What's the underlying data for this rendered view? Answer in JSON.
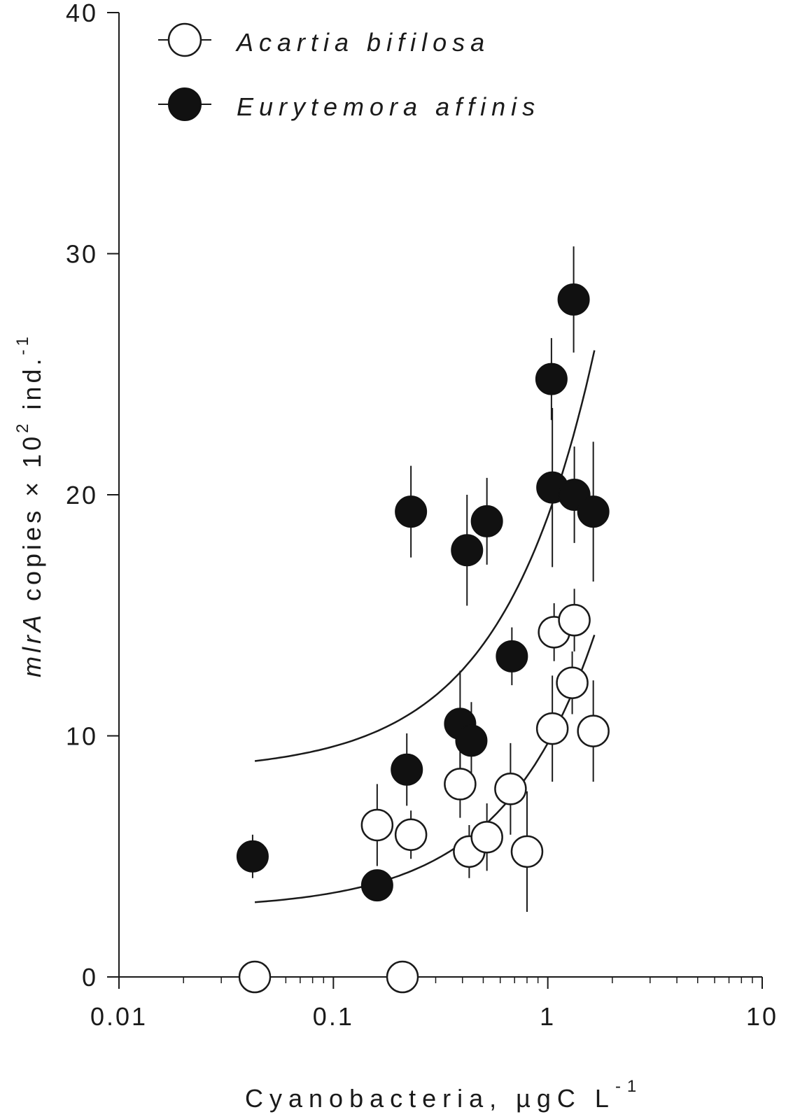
{
  "chart_data": {
    "type": "scatter",
    "x_scale": "log",
    "xlim": [
      0.01,
      10
    ],
    "ylim": [
      0,
      40
    ],
    "x_ticks": [
      0.01,
      0.1,
      1,
      10
    ],
    "x_tick_labels": [
      "0.01",
      "0.1",
      "1",
      "10"
    ],
    "y_ticks": [
      0,
      10,
      20,
      30,
      40
    ],
    "y_tick_labels": [
      "0",
      "10",
      "20",
      "30",
      "40"
    ],
    "xlabel": {
      "main": "Cyanobacteria, µgC L",
      "sup": "-1"
    },
    "ylabel": {
      "italic": "mlrA",
      "rest": " copies × 10",
      "sup1": "2",
      "rest2": " ind.",
      "sup2": "-1"
    },
    "legend_position": "top-left",
    "series": [
      {
        "name": "Acartia bifilosa",
        "marker": "open-circle",
        "color": "#ffffff",
        "points": [
          {
            "x": 0.043,
            "y": 0.0,
            "err": 0
          },
          {
            "x": 0.21,
            "y": 0.0,
            "err": 0
          },
          {
            "x": 0.16,
            "y": 6.3,
            "err": 1.7
          },
          {
            "x": 0.23,
            "y": 5.9,
            "err": 1.0
          },
          {
            "x": 0.39,
            "y": 8.0,
            "err": 1.4
          },
          {
            "x": 0.43,
            "y": 5.2,
            "err": 1.1
          },
          {
            "x": 0.52,
            "y": 5.8,
            "err": 1.4
          },
          {
            "x": 0.67,
            "y": 7.8,
            "err": 1.9
          },
          {
            "x": 0.8,
            "y": 5.2,
            "err": 2.5
          },
          {
            "x": 1.05,
            "y": 10.3,
            "err": 2.2
          },
          {
            "x": 1.07,
            "y": 14.3,
            "err": 1.2
          },
          {
            "x": 1.3,
            "y": 12.2,
            "err": 1.3
          },
          {
            "x": 1.33,
            "y": 14.8,
            "err": 1.3
          },
          {
            "x": 1.63,
            "y": 10.2,
            "err": 2.1
          }
        ]
      },
      {
        "name": "Eurytemora affinis",
        "marker": "filled-circle",
        "color": "#000000",
        "points": [
          {
            "x": 0.042,
            "y": 5.0,
            "err": 0.9
          },
          {
            "x": 0.16,
            "y": 3.8,
            "err": 0.6
          },
          {
            "x": 0.22,
            "y": 8.6,
            "err": 1.5
          },
          {
            "x": 0.23,
            "y": 19.3,
            "err": 1.9
          },
          {
            "x": 0.39,
            "y": 10.5,
            "err": 2.2
          },
          {
            "x": 0.42,
            "y": 17.7,
            "err": 2.3
          },
          {
            "x": 0.44,
            "y": 9.8,
            "err": 1.6
          },
          {
            "x": 0.52,
            "y": 18.9,
            "err": 1.8
          },
          {
            "x": 0.68,
            "y": 13.3,
            "err": 1.2
          },
          {
            "x": 1.04,
            "y": 24.8,
            "err": 1.7
          },
          {
            "x": 1.05,
            "y": 20.3,
            "err": 3.3
          },
          {
            "x": 1.32,
            "y": 28.1,
            "err": 2.2
          },
          {
            "x": 1.33,
            "y": 20.0,
            "err": 2.0
          },
          {
            "x": 1.63,
            "y": 19.3,
            "err": 2.9
          }
        ]
      }
    ],
    "fits": [
      {
        "of": "Eurytemora affinis",
        "x_range": [
          0.043,
          1.65
        ],
        "y0": 8.5,
        "slope": 10.6
      },
      {
        "of": "Acartia bifilosa",
        "x_range": [
          0.043,
          1.65
        ],
        "y0": 2.8,
        "slope": 6.9
      }
    ]
  }
}
